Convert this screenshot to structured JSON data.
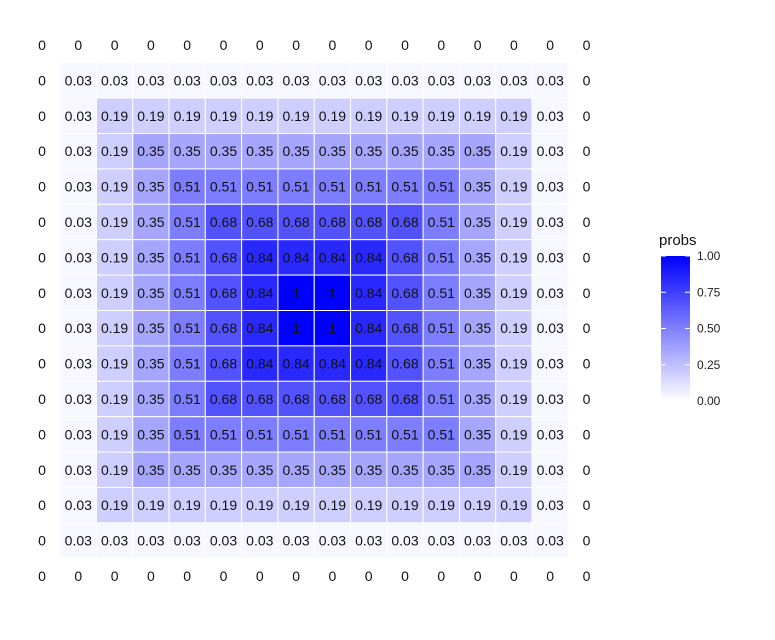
{
  "chart_data": {
    "type": "heatmap",
    "title": "",
    "xlabel": "",
    "ylabel": "",
    "grid": false,
    "color_low": "#ffffff",
    "color_high": "#0000ff",
    "value_range": [
      0,
      1
    ],
    "legend": {
      "title": "probs",
      "ticks": [
        "1.00",
        "0.75",
        "0.50",
        "0.25",
        "0.00"
      ],
      "tick_values": [
        1,
        0.75,
        0.5,
        0.25,
        0
      ],
      "placement": "right"
    },
    "values": [
      [
        0,
        0,
        0,
        0,
        0,
        0,
        0,
        0,
        0,
        0,
        0,
        0,
        0,
        0,
        0,
        0
      ],
      [
        0,
        0.03,
        0.03,
        0.03,
        0.03,
        0.03,
        0.03,
        0.03,
        0.03,
        0.03,
        0.03,
        0.03,
        0.03,
        0.03,
        0.03,
        0
      ],
      [
        0,
        0.03,
        0.19,
        0.19,
        0.19,
        0.19,
        0.19,
        0.19,
        0.19,
        0.19,
        0.19,
        0.19,
        0.19,
        0.19,
        0.03,
        0
      ],
      [
        0,
        0.03,
        0.19,
        0.35,
        0.35,
        0.35,
        0.35,
        0.35,
        0.35,
        0.35,
        0.35,
        0.35,
        0.35,
        0.19,
        0.03,
        0
      ],
      [
        0,
        0.03,
        0.19,
        0.35,
        0.51,
        0.51,
        0.51,
        0.51,
        0.51,
        0.51,
        0.51,
        0.51,
        0.35,
        0.19,
        0.03,
        0
      ],
      [
        0,
        0.03,
        0.19,
        0.35,
        0.51,
        0.68,
        0.68,
        0.68,
        0.68,
        0.68,
        0.68,
        0.51,
        0.35,
        0.19,
        0.03,
        0
      ],
      [
        0,
        0.03,
        0.19,
        0.35,
        0.51,
        0.68,
        0.84,
        0.84,
        0.84,
        0.84,
        0.68,
        0.51,
        0.35,
        0.19,
        0.03,
        0
      ],
      [
        0,
        0.03,
        0.19,
        0.35,
        0.51,
        0.68,
        0.84,
        1,
        1,
        0.84,
        0.68,
        0.51,
        0.35,
        0.19,
        0.03,
        0
      ],
      [
        0,
        0.03,
        0.19,
        0.35,
        0.51,
        0.68,
        0.84,
        1,
        1,
        0.84,
        0.68,
        0.51,
        0.35,
        0.19,
        0.03,
        0
      ],
      [
        0,
        0.03,
        0.19,
        0.35,
        0.51,
        0.68,
        0.84,
        0.84,
        0.84,
        0.84,
        0.68,
        0.51,
        0.35,
        0.19,
        0.03,
        0
      ],
      [
        0,
        0.03,
        0.19,
        0.35,
        0.51,
        0.68,
        0.68,
        0.68,
        0.68,
        0.68,
        0.68,
        0.51,
        0.35,
        0.19,
        0.03,
        0
      ],
      [
        0,
        0.03,
        0.19,
        0.35,
        0.51,
        0.51,
        0.51,
        0.51,
        0.51,
        0.51,
        0.51,
        0.51,
        0.35,
        0.19,
        0.03,
        0
      ],
      [
        0,
        0.03,
        0.19,
        0.35,
        0.35,
        0.35,
        0.35,
        0.35,
        0.35,
        0.35,
        0.35,
        0.35,
        0.35,
        0.19,
        0.03,
        0
      ],
      [
        0,
        0.03,
        0.19,
        0.19,
        0.19,
        0.19,
        0.19,
        0.19,
        0.19,
        0.19,
        0.19,
        0.19,
        0.19,
        0.19,
        0.03,
        0
      ],
      [
        0,
        0.03,
        0.03,
        0.03,
        0.03,
        0.03,
        0.03,
        0.03,
        0.03,
        0.03,
        0.03,
        0.03,
        0.03,
        0.03,
        0.03,
        0
      ],
      [
        0,
        0,
        0,
        0,
        0,
        0,
        0,
        0,
        0,
        0,
        0,
        0,
        0,
        0,
        0,
        0
      ]
    ]
  }
}
